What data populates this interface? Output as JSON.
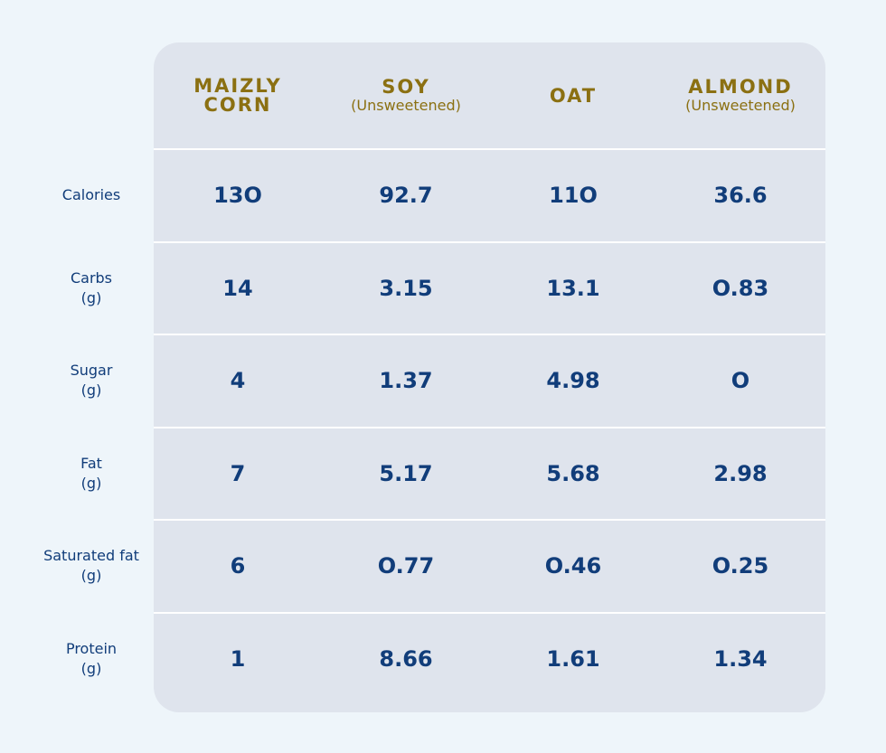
{
  "chart_data": {
    "type": "table",
    "columns": [
      {
        "name": "MAIZLY\nCORN",
        "sub": ""
      },
      {
        "name": "SOY",
        "sub": "(Unsweetened)"
      },
      {
        "name": "OAT",
        "sub": ""
      },
      {
        "name": "ALMOND",
        "sub": "(Unsweetened)"
      }
    ],
    "rows": [
      {
        "label": "Calories",
        "values": [
          "13O",
          "92.7",
          "11O",
          "36.6"
        ]
      },
      {
        "label": "Carbs\n(g)",
        "values": [
          "14",
          "3.15",
          "13.1",
          "O.83"
        ]
      },
      {
        "label": "Sugar\n(g)",
        "values": [
          "4",
          "1.37",
          "4.98",
          "O"
        ]
      },
      {
        "label": "Fat\n(g)",
        "values": [
          "7",
          "5.17",
          "5.68",
          "2.98"
        ]
      },
      {
        "label": "Saturated fat\n(g)",
        "values": [
          "6",
          "O.77",
          "O.46",
          "O.25"
        ]
      },
      {
        "label": "Protein\n(g)",
        "values": [
          "1",
          "8.66",
          "1.61",
          "1.34"
        ]
      }
    ]
  },
  "colors": {
    "background": "#eef5fa",
    "panel": "#dfe4ed",
    "header_text": "#8b7012",
    "body_text": "#113d7a",
    "divider": "#ffffff"
  }
}
